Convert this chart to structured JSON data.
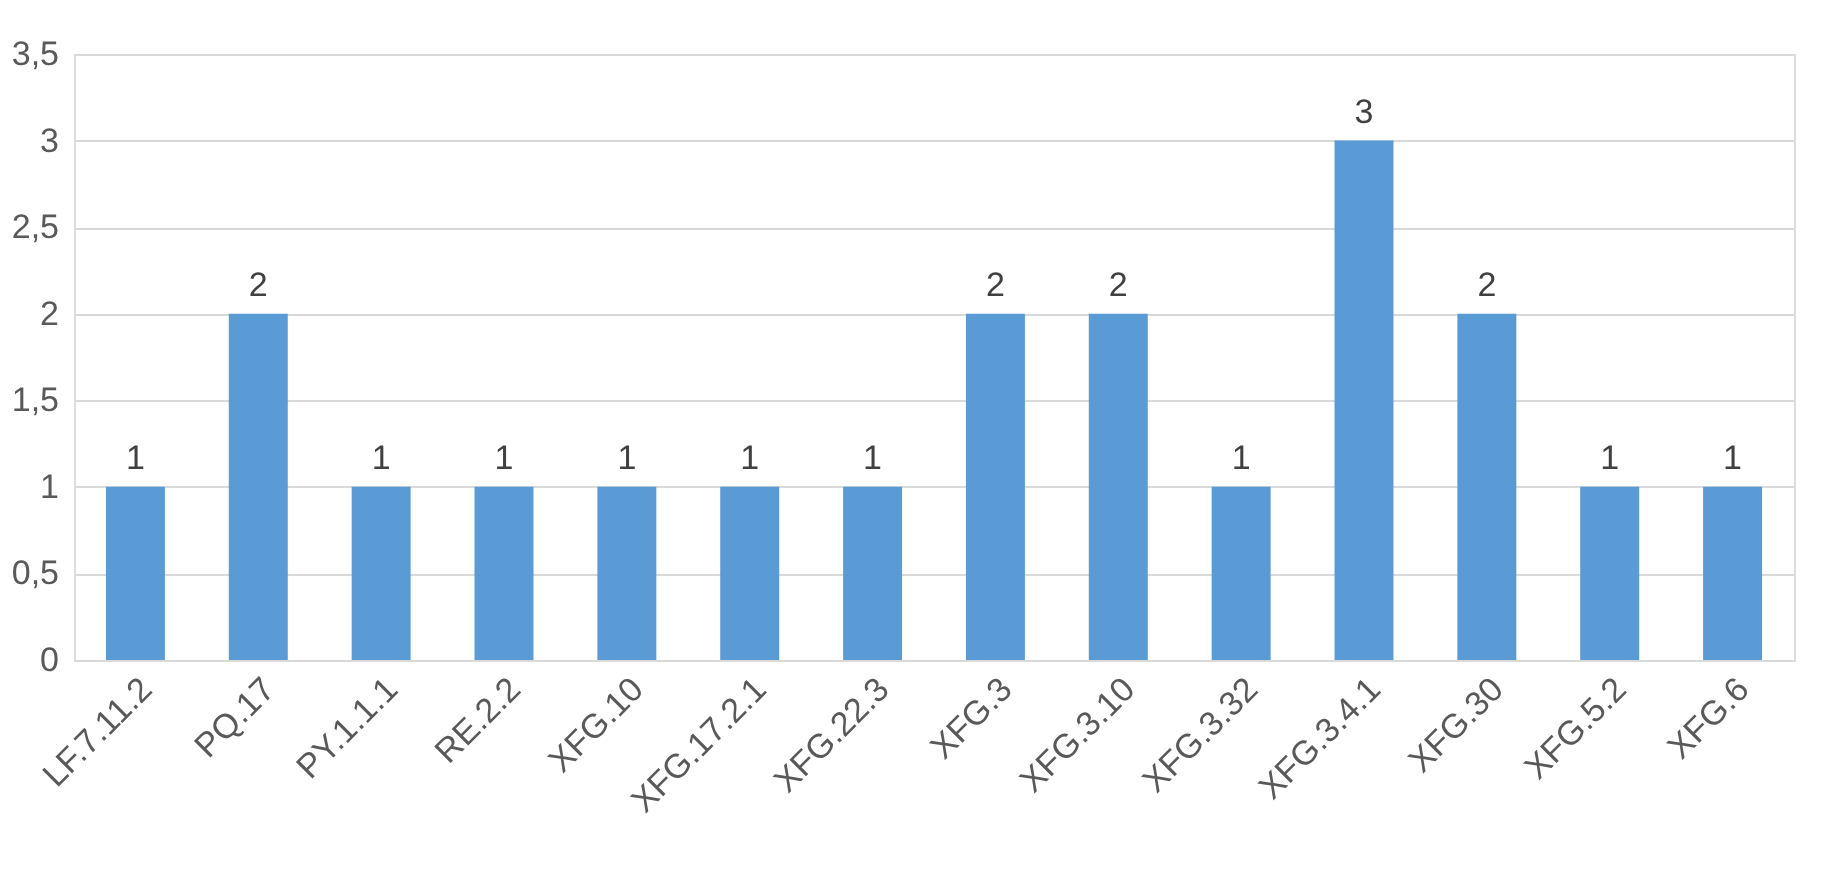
{
  "chart_data": {
    "type": "bar",
    "categories": [
      "LF.7.11.2",
      "PQ.17",
      "PY.1.1.1",
      "RE.2.2",
      "XFG.10",
      "XFG.17.2.1",
      "XFG.22.3",
      "XFG.3",
      "XFG.3.10",
      "XFG.3.32",
      "XFG.3.4.1",
      "XFG.30",
      "XFG.5.2",
      "XFG.6"
    ],
    "values": [
      1,
      2,
      1,
      1,
      1,
      1,
      1,
      2,
      2,
      1,
      3,
      2,
      1,
      1
    ],
    "color": "#5b9bd5",
    "ylim": [
      0,
      3.5
    ],
    "yticks": [
      0,
      {
        "value": 0.5,
        "label": "0,5"
      },
      1,
      {
        "value": 1.5,
        "label": "1,5"
      },
      2,
      {
        "value": 2.5,
        "label": "2,5"
      },
      3,
      {
        "value": 3.5,
        "label": "3,5"
      }
    ],
    "grid": "y",
    "data_labels": true
  }
}
